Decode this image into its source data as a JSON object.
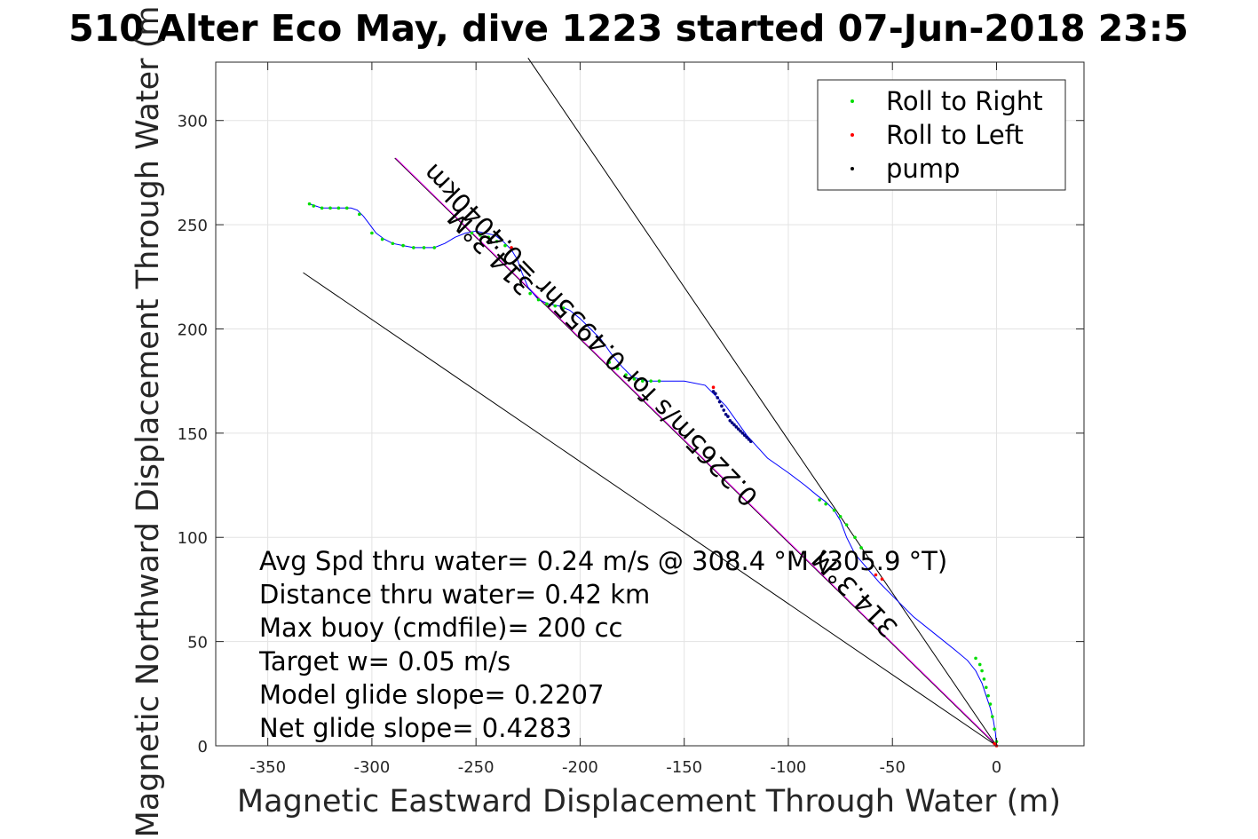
{
  "chart_data": {
    "type": "line",
    "title": "510 Alter Eco May, dive 1223 started 07-Jun-2018 23:5",
    "xlabel": "Magnetic Eastward Displacement Through Water (m)",
    "ylabel": "Magnetic Northward Displacement Through Water (m",
    "xlim": [
      -375,
      42
    ],
    "ylim": [
      0,
      328
    ],
    "xticks": [
      -350,
      -300,
      -250,
      -200,
      -150,
      -100,
      -50,
      0
    ],
    "yticks": [
      0,
      50,
      100,
      150,
      200,
      250,
      300
    ],
    "grid": true,
    "legend_position": "top-right",
    "legend": [
      {
        "label": "Roll to Right",
        "color": "#00dd00"
      },
      {
        "label": "Roll to Left",
        "color": "#ff0000"
      },
      {
        "label": "pump",
        "color": "#000000"
      }
    ],
    "track": {
      "name": "track",
      "color": "#0000ff",
      "x": [
        0,
        -0.5,
        -1.5,
        -3,
        -5,
        -7,
        -10,
        -14,
        -20,
        -30,
        -40,
        -48,
        -56,
        -62,
        -68,
        -72,
        -75,
        -78,
        -82,
        -86,
        -92,
        -100,
        -110,
        -120,
        -130,
        -140,
        -150,
        -160,
        -168,
        -175,
        -180,
        -185,
        -190,
        -195,
        -200,
        -205,
        -210,
        -215,
        -220,
        -225,
        -228,
        -230,
        -233,
        -237,
        -241,
        -246,
        -250,
        -255,
        -260,
        -265,
        -270,
        -275,
        -280,
        -285,
        -290,
        -294,
        -298,
        -301,
        -304,
        -307,
        -310,
        -313,
        -316,
        -320,
        -324,
        -327,
        -330
      ],
      "y": [
        0,
        6,
        12,
        18,
        24,
        30,
        36,
        41,
        46,
        54,
        62,
        70,
        78,
        85,
        92,
        100,
        108,
        113,
        117,
        120,
        125,
        131,
        138,
        149,
        163,
        173,
        175,
        175,
        175,
        177,
        182,
        188,
        195,
        200,
        205,
        209,
        211,
        212,
        214,
        220,
        227,
        233,
        238,
        242,
        245,
        246,
        247,
        246,
        244,
        241,
        239,
        239,
        239,
        240,
        241,
        243,
        246,
        250,
        254,
        257,
        258,
        258,
        258,
        258,
        258,
        259,
        260
      ]
    },
    "roll_right_x": [
      0,
      -1,
      -2,
      -3,
      -4,
      -5,
      -6,
      -7,
      -8,
      -10,
      -65,
      -68,
      -72,
      -75,
      -78,
      -82,
      -85,
      -162,
      -166,
      -170,
      -174,
      -178,
      -182,
      -186,
      -208,
      -212,
      -216,
      -220,
      -224,
      -236,
      -240,
      -244,
      -248,
      -252,
      -270,
      -275,
      -280,
      -285,
      -290,
      -295,
      -300,
      -306,
      -312,
      -316,
      -320,
      -324,
      -328,
      -330
    ],
    "roll_right_y": [
      2,
      8,
      14,
      20,
      24,
      28,
      32,
      36,
      39,
      42,
      95,
      100,
      106,
      110,
      113,
      116,
      118,
      175,
      175,
      175,
      176,
      178,
      181,
      184,
      210,
      211,
      212,
      214,
      217,
      240,
      242,
      244,
      245,
      246,
      239,
      239,
      239,
      240,
      241,
      243,
      246,
      255,
      258,
      258,
      258,
      258,
      259,
      260
    ],
    "roll_left_x": [
      0,
      -1,
      -136,
      -233,
      -55,
      -58
    ],
    "roll_left_y": [
      0,
      1,
      172,
      239,
      80,
      82
    ],
    "pump_x": [
      -134,
      -133,
      -132,
      -131,
      -130,
      -129,
      -128,
      -127,
      -126,
      -125,
      -124,
      -123,
      -122,
      -121,
      -120,
      -119,
      -118,
      -135,
      -136
    ],
    "pump_y": [
      167,
      165,
      163,
      161,
      159,
      158,
      156,
      155,
      154,
      153,
      152,
      151,
      150,
      149,
      148,
      147,
      146,
      169,
      170
    ],
    "reference_lines": [
      {
        "name": "glide-line-314",
        "x": [
          0,
          -289
        ],
        "y": [
          0,
          282
        ]
      },
      {
        "name": "upper-bound-line",
        "x": [
          0,
          -225
        ],
        "y": [
          0,
          330
        ]
      },
      {
        "name": "lower-bound-line",
        "x": [
          0,
          -333
        ],
        "y": [
          0,
          227
        ]
      }
    ],
    "rotated_labels": [
      {
        "text": "314.3°M",
        "x": -240,
        "y": 240,
        "angle": 225.7
      },
      {
        "text": "0.2265m/s for 0.4955hr =0.4040km",
        "x": -192,
        "y": 200,
        "angle": 225.7
      },
      {
        "text": "314.3°M",
        "x": -65,
        "y": 76,
        "angle": 225.7
      }
    ],
    "annotations": [
      "Avg Spd thru water=  0.24 m/s @ 308.4 °M (305.9 °T)",
      "Distance thru water=  0.42 km",
      "Max buoy (cmdfile)= 200 cc",
      "Target w= 0.05 m/s",
      "Model glide slope= 0.2207",
      "Net glide slope= 0.4283"
    ]
  }
}
